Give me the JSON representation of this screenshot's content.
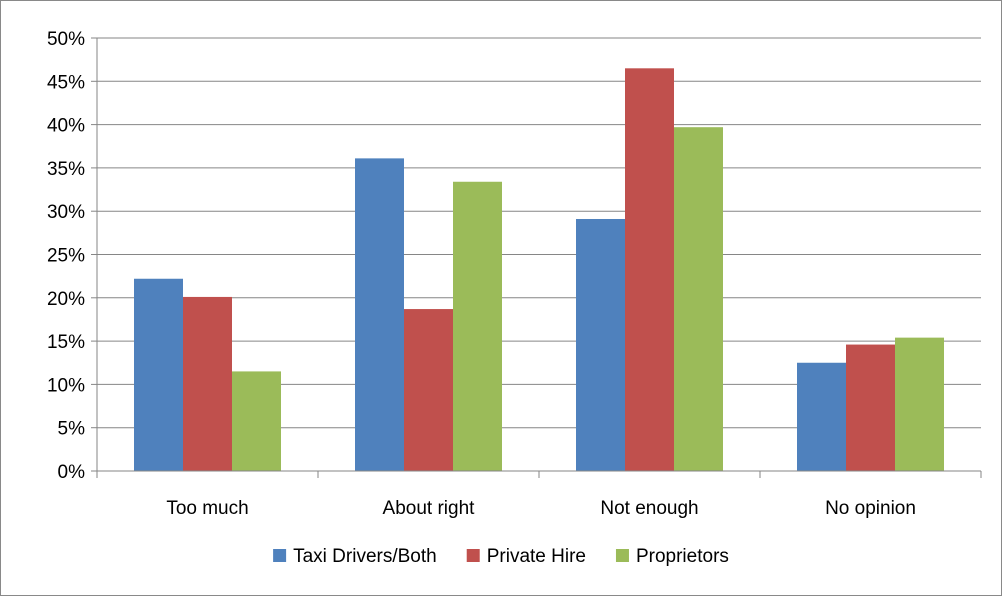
{
  "chart_data": {
    "type": "bar",
    "categories": [
      "Too much",
      "About right",
      "Not enough",
      "No opinion"
    ],
    "series": [
      {
        "name": "Taxi Drivers/Both",
        "color": "#4F81BD",
        "values": [
          22.2,
          36.1,
          29.1,
          12.5
        ]
      },
      {
        "name": "Private Hire",
        "color": "#C0504D",
        "values": [
          20.1,
          18.7,
          46.5,
          14.6
        ]
      },
      {
        "name": "Proprietors",
        "color": "#9BBB59",
        "values": [
          11.5,
          33.4,
          39.7,
          15.4
        ]
      }
    ],
    "ylim": [
      0,
      50
    ],
    "yticks": [
      "0%",
      "5%",
      "10%",
      "15%",
      "20%",
      "25%",
      "30%",
      "35%",
      "40%",
      "45%",
      "50%"
    ],
    "grid": true,
    "legend_position": "bottom"
  }
}
